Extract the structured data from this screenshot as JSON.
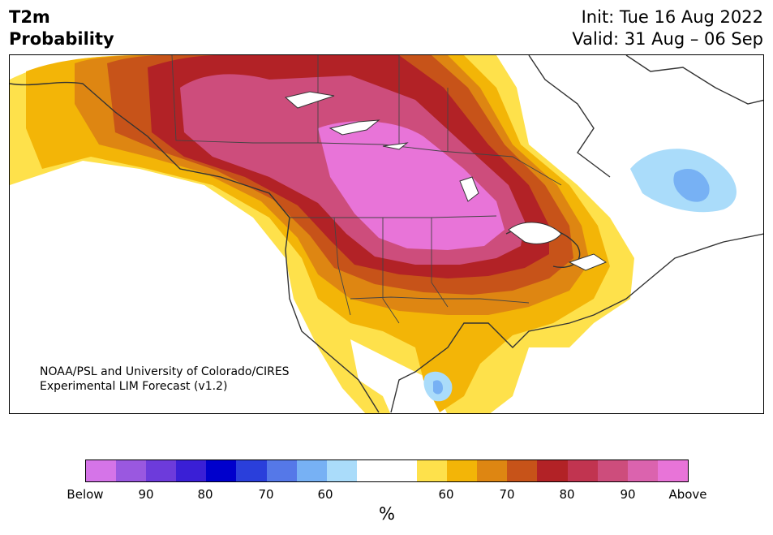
{
  "header": {
    "variable": "T2m",
    "product": "Probability",
    "init": "Init: Tue 16 Aug 2022",
    "valid": "Valid: 31 Aug – 06 Sep"
  },
  "credit": {
    "line1": "NOAA/PSL and University of Colorado/CIRES",
    "line2": "Experimental LIM Forecast (v1.2)"
  },
  "colorbar": {
    "unit": "%",
    "colors": [
      "#d574e8",
      "#9a58e0",
      "#6d3bdb",
      "#3a1fd6",
      "#0000cc",
      "#2a3fdb",
      "#5578e8",
      "#77b1f4",
      "#aadcfa",
      "#ffffff",
      "#ffffff",
      "#fee14b",
      "#f3b507",
      "#de8612",
      "#c75319",
      "#b22226",
      "#c13450",
      "#cd4d7c",
      "#db63ae",
      "#e874d8"
    ],
    "ticks": [
      "Below",
      "90",
      "80",
      "70",
      "60",
      "60",
      "70",
      "80",
      "90",
      "Above"
    ]
  },
  "map": {
    "region": "North America",
    "warm_levels": [
      {
        "label": "Above",
        "color": "#e874d8"
      },
      {
        "label": "90",
        "color": "#cd4d7c"
      },
      {
        "label": "80",
        "color": "#b22226"
      },
      {
        "label": "70",
        "color": "#de8612"
      },
      {
        "label": "60",
        "color": "#fee14b"
      }
    ],
    "cold_levels": [
      {
        "label": "60",
        "color": "#aadcfa"
      },
      {
        "label": "70",
        "color": "#77b1f4"
      }
    ]
  }
}
